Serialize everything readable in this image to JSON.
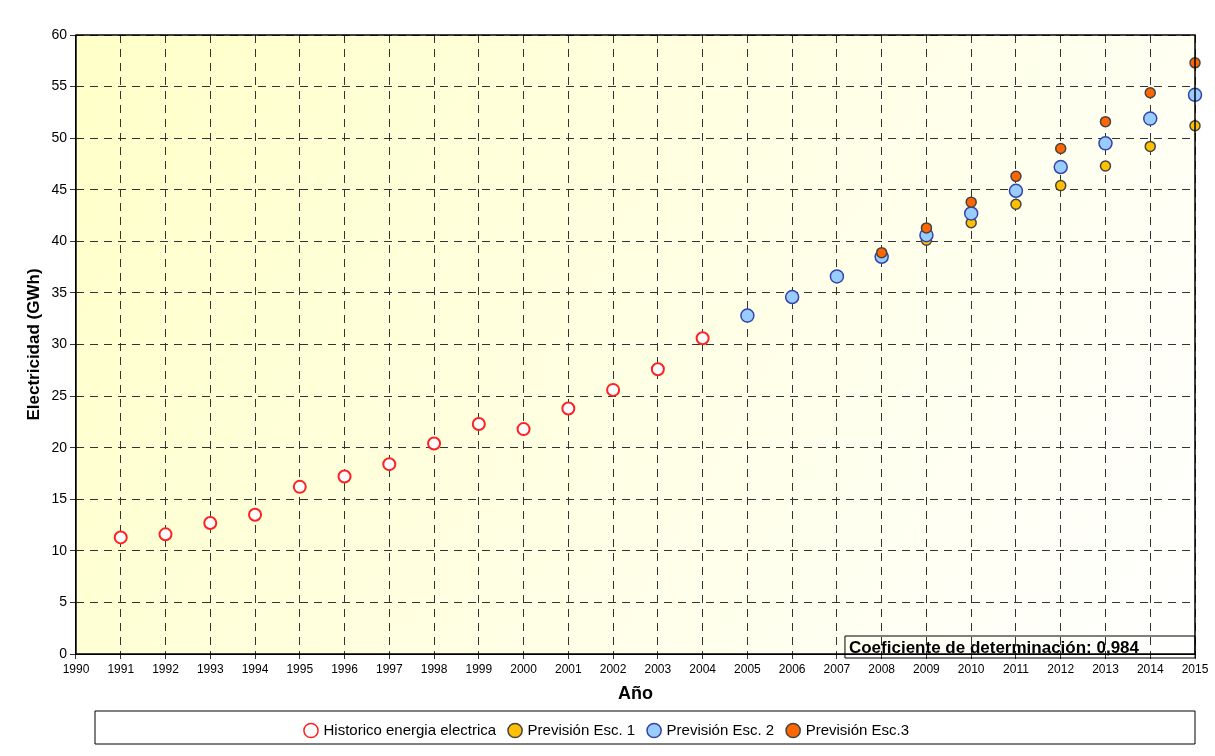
{
  "chart_data": {
    "type": "scatter",
    "xlabel": "Año",
    "ylabel": "Electricidad (GWh)",
    "xlim": [
      1990,
      2015
    ],
    "xticks": [
      1990,
      1991,
      1992,
      1993,
      1994,
      1995,
      1996,
      1997,
      1998,
      1999,
      2000,
      2001,
      2002,
      2003,
      2004,
      2005,
      2006,
      2007,
      2008,
      2009,
      2010,
      2011,
      2012,
      2013,
      2014,
      2015
    ],
    "ylim": [
      0,
      60
    ],
    "yticks": [
      0,
      5,
      10,
      15,
      20,
      25,
      30,
      35,
      40,
      45,
      50,
      55,
      60
    ],
    "grid": true,
    "legend": "bottom",
    "marker": "circle",
    "annotations": [
      "Coeficiente de determinación: 0,984"
    ],
    "series": [
      {
        "name": "Historico energia electrica",
        "color": "#ff2020",
        "x": [
          1991,
          1992,
          1993,
          1994,
          1995,
          1996,
          1997,
          1998,
          1999,
          2000,
          2001,
          2002,
          2003,
          2004
        ],
        "values": [
          11.3,
          11.6,
          12.7,
          13.5,
          16.2,
          17.2,
          18.4,
          20.4,
          22.3,
          21.8,
          23.8,
          25.6,
          27.6,
          30.6
        ]
      },
      {
        "name": "Previsión Esc. 1",
        "color": "#ffc000",
        "x": [
          2009,
          2010,
          2011,
          2012,
          2013,
          2014,
          2015
        ],
        "values": [
          40.1,
          41.8,
          43.6,
          45.4,
          47.3,
          49.2,
          51.2
        ]
      },
      {
        "name": "Previsión Esc. 2",
        "color": "#99ccff",
        "x": [
          2005,
          2006,
          2007,
          2008,
          2009,
          2010,
          2011,
          2012,
          2013,
          2014,
          2015
        ],
        "values": [
          32.8,
          34.6,
          36.6,
          38.5,
          40.6,
          42.7,
          44.9,
          47.2,
          49.5,
          51.9,
          54.2
        ]
      },
      {
        "name": "Previsión Esc.3",
        "color": "#ff6600",
        "x": [
          2008,
          2009,
          2010,
          2011,
          2012,
          2013,
          2014,
          2015
        ],
        "values": [
          38.9,
          41.3,
          43.8,
          46.3,
          49.0,
          51.6,
          54.4,
          57.3
        ]
      }
    ]
  }
}
